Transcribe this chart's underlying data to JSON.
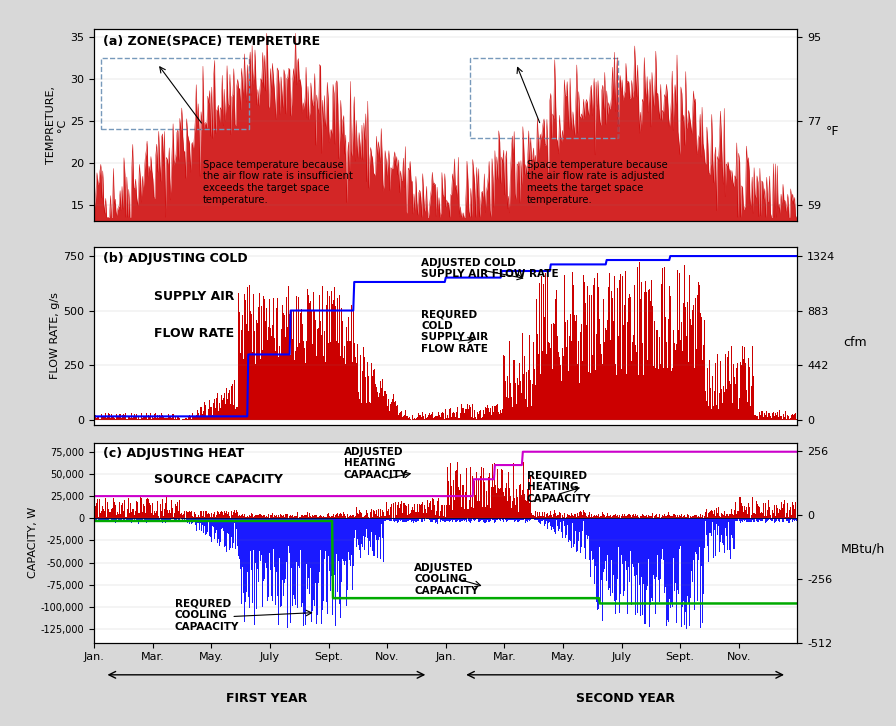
{
  "title_a": "(a) ZONE(SPACE) TEMPRETURE",
  "ylabel_a": "TEMPRETURE,\n°C",
  "ylabel_b": "FLOW RATE, g/s",
  "ylabel_c": "CAPACITY, W",
  "ylabel_a_right": "°F",
  "ylabel_b_right": "cfm",
  "ylabel_c_right": "MBtu/h",
  "yticks_a_left": [
    15,
    20,
    25,
    30,
    35
  ],
  "yticks_a_right_vals": [
    59,
    77,
    95
  ],
  "yticks_a_right_pos": [
    15,
    25,
    35
  ],
  "yticks_b": [
    0,
    250,
    500,
    750
  ],
  "yticks_b_right": [
    0,
    442,
    883,
    1324
  ],
  "yticks_c": [
    -125000,
    -100000,
    -75000,
    -50000,
    -25000,
    0,
    25000,
    50000,
    75000
  ],
  "yticks_c_right_pos": [
    -150000,
    -75000,
    0,
    75000
  ],
  "yticks_c_right_labels": [
    "-512",
    "-256",
    "0",
    "256"
  ],
  "ylim_a": [
    13,
    36
  ],
  "ylim_b": [
    -20,
    790
  ],
  "ylim_c": [
    -140000,
    85000
  ],
  "xtick_labels": [
    "Jan.",
    "Mar.",
    "May.",
    "July",
    "Sept.",
    "Nov.",
    "Jan.",
    "Mar.",
    "May.",
    "July",
    "Sept.",
    "Nov."
  ],
  "n_points": 730,
  "red_color": "#cc0000",
  "blue_color": "#1a1aff",
  "magenta_color": "#cc00cc",
  "green_color": "#00aa00",
  "dashed_box_color": "#7799bb",
  "bg_color": "#d8d8d8"
}
